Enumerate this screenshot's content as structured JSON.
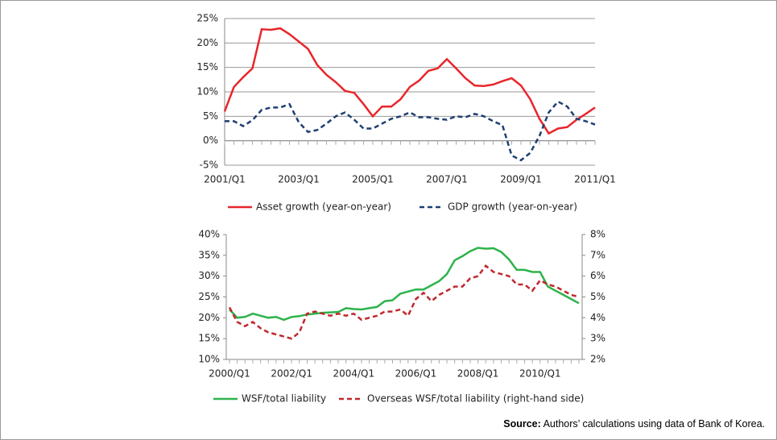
{
  "chart_data": [
    {
      "type": "line",
      "categories": [
        "2001/Q1",
        null,
        null,
        null,
        null,
        null,
        null,
        null,
        "2003/Q1",
        null,
        null,
        null,
        null,
        null,
        null,
        null,
        "2005/Q1",
        null,
        null,
        null,
        null,
        null,
        null,
        null,
        "2007/Q1",
        null,
        null,
        null,
        null,
        null,
        null,
        null,
        "2009/Q1",
        null,
        null,
        null,
        null,
        null,
        null,
        null,
        "2011/Q1"
      ],
      "series": [
        {
          "name": "Asset growth (year-on-year)",
          "color": "#e8262b",
          "dash": false,
          "values": [
            6,
            11,
            13,
            14.8,
            22.8,
            22.7,
            23,
            21.8,
            20.3,
            18.8,
            15.5,
            13.5,
            12,
            10.2,
            9.8,
            7.5,
            5,
            7,
            7,
            8.5,
            11,
            12.3,
            14.3,
            14.8,
            16.7,
            14.8,
            12.8,
            11.3,
            11.2,
            11.5,
            12.2,
            12.8,
            11.3,
            8.5,
            4.5,
            1.5,
            2.5,
            2.8,
            4.3,
            5.5,
            6.8
          ]
        },
        {
          "name": "GDP growth (year-on-year)",
          "color": "#1f3f73",
          "dash": true,
          "values": [
            4,
            4,
            3,
            4.2,
            6.3,
            6.8,
            6.8,
            7.5,
            3.8,
            1.8,
            2.2,
            3.5,
            5,
            5.8,
            4.3,
            2.5,
            2.5,
            3.5,
            4.5,
            5,
            5.8,
            4.8,
            4.8,
            4.5,
            4.3,
            5,
            4.8,
            5.5,
            5,
            4,
            3.2,
            -3,
            -4,
            -2.5,
            1,
            5.8,
            8,
            7,
            4.5,
            4,
            3.3
          ]
        }
      ],
      "ylim": [
        -5,
        25
      ],
      "yticks": [
        {
          "value": -5,
          "label": "-5%"
        },
        {
          "value": 0,
          "label": "0%"
        },
        {
          "value": 5,
          "label": "5%"
        },
        {
          "value": 10,
          "label": "10%"
        },
        {
          "value": 15,
          "label": "15%"
        },
        {
          "value": 20,
          "label": "20%"
        },
        {
          "value": 25,
          "label": "25%"
        }
      ],
      "grid": true
    },
    {
      "type": "line",
      "categories": [
        "2000/Q1",
        null,
        null,
        null,
        null,
        null,
        null,
        null,
        "2002/Q1",
        null,
        null,
        null,
        null,
        null,
        null,
        null,
        "2004/Q1",
        null,
        null,
        null,
        null,
        null,
        null,
        null,
        "2006/Q1",
        null,
        null,
        null,
        null,
        null,
        null,
        null,
        "2008/Q1",
        null,
        null,
        null,
        null,
        null,
        null,
        null,
        "2010/Q1",
        null,
        null,
        null,
        null,
        null
      ],
      "series": [
        {
          "name": "WSF/total liability",
          "color": "#2db34a",
          "dash": false,
          "values": [
            22,
            20,
            20.2,
            21,
            20.5,
            20,
            20.2,
            19.5,
            20.2,
            20.4,
            20.8,
            21,
            21.2,
            21.3,
            21.4,
            22.3,
            22.1,
            22,
            22.3,
            22.6,
            24,
            24.2,
            25.8,
            26.3,
            26.8,
            26.8,
            27.8,
            28.8,
            30.5,
            33.8,
            34.8,
            36,
            36.8,
            36.6,
            36.7,
            35.8,
            34,
            31.5,
            31.5,
            31,
            31,
            27.5,
            26.5,
            25.5,
            24.5,
            23.5
          ]
        },
        {
          "name": "Overseas WSF/total liability (right-hand side)",
          "color": "#c0282d",
          "dash": true,
          "axis": "y2",
          "values": [
            4.5,
            3.8,
            3.6,
            3.8,
            3.5,
            3.3,
            3.2,
            3.1,
            3.0,
            3.3,
            4.2,
            4.3,
            4.2,
            4.1,
            4.2,
            4.1,
            4.2,
            3.9,
            4.0,
            4.1,
            4.3,
            4.3,
            4.4,
            4.1,
            4.9,
            5.2,
            4.8,
            5.1,
            5.3,
            5.5,
            5.5,
            5.9,
            6.0,
            6.5,
            6.2,
            6.1,
            6.0,
            5.6,
            5.6,
            5.3,
            5.8,
            5.6,
            5.5,
            5.3,
            5.1,
            5.0
          ]
        }
      ],
      "ylim": [
        10,
        40
      ],
      "yticks": [
        {
          "value": 10,
          "label": "10%"
        },
        {
          "value": 15,
          "label": "15%"
        },
        {
          "value": 20,
          "label": "20%"
        },
        {
          "value": 25,
          "label": "25%"
        },
        {
          "value": 30,
          "label": "30%"
        },
        {
          "value": 35,
          "label": "35%"
        },
        {
          "value": 40,
          "label": "40%"
        }
      ],
      "y2lim": [
        2,
        8
      ],
      "y2ticks": [
        {
          "value": 2,
          "label": "2%"
        },
        {
          "value": 3,
          "label": "3%"
        },
        {
          "value": 4,
          "label": "4%"
        },
        {
          "value": 5,
          "label": "5%"
        },
        {
          "value": 6,
          "label": "6%"
        },
        {
          "value": 7,
          "label": "7%"
        },
        {
          "value": 8,
          "label": "8%"
        }
      ],
      "grid": false
    }
  ],
  "source": {
    "label": "Source:",
    "text": "Authors’ calculations using data of Bank of Korea."
  }
}
